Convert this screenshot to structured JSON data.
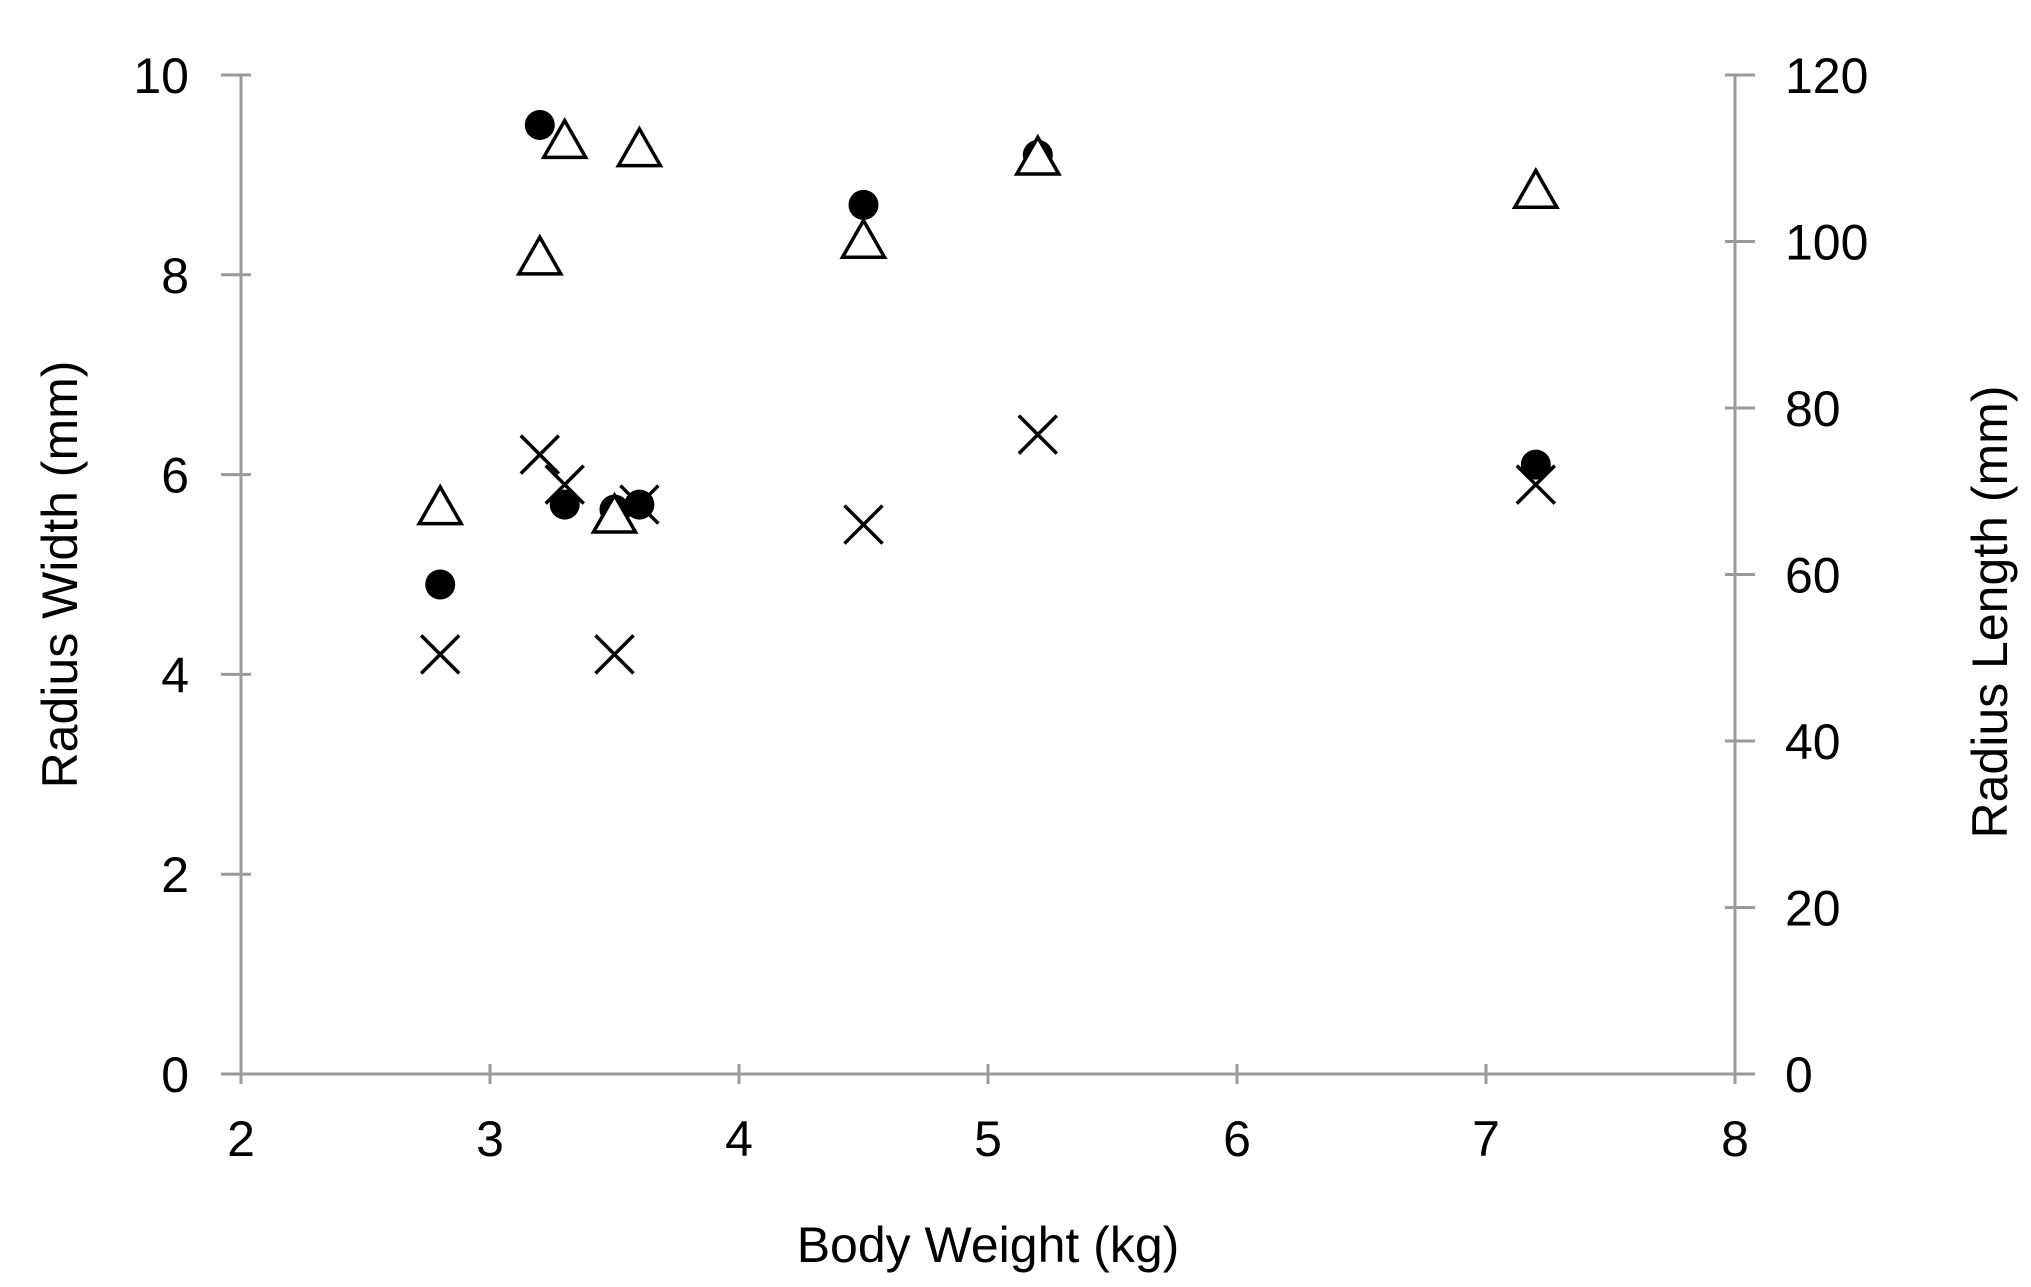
{
  "chart_data": {
    "type": "scatter",
    "title": "",
    "xlabel": "Body Weight (kg)",
    "ylabel": "Radius Width (mm)",
    "y2label": "Radius Length (mm)",
    "xlim": [
      2,
      8
    ],
    "ylim": [
      0,
      10
    ],
    "y2lim": [
      0,
      120
    ],
    "xticks": [
      "2",
      "3",
      "4",
      "5",
      "6",
      "7",
      "8"
    ],
    "yticks": [
      "0",
      "2",
      "4",
      "6",
      "8",
      "10"
    ],
    "y2ticks": [
      "0",
      "20",
      "40",
      "60",
      "80",
      "100",
      "120"
    ],
    "grid": false,
    "legend": "none",
    "series": [
      {
        "marker": "filled-circle",
        "axis": "left",
        "color": "#000000",
        "points": [
          {
            "x": 2.8,
            "y": 4.9
          },
          {
            "x": 3.2,
            "y": 9.5
          },
          {
            "x": 3.3,
            "y": 5.7
          },
          {
            "x": 3.5,
            "y": 5.65
          },
          {
            "x": 3.6,
            "y": 5.7
          },
          {
            "x": 4.5,
            "y": 8.7
          },
          {
            "x": 5.2,
            "y": 9.2
          },
          {
            "x": 7.2,
            "y": 6.1
          }
        ]
      },
      {
        "marker": "x",
        "axis": "left",
        "color": "#000000",
        "points": [
          {
            "x": 2.8,
            "y": 4.2
          },
          {
            "x": 3.2,
            "y": 6.2
          },
          {
            "x": 3.3,
            "y": 5.9
          },
          {
            "x": 3.5,
            "y": 4.2
          },
          {
            "x": 3.6,
            "y": 5.7
          },
          {
            "x": 4.5,
            "y": 5.5
          },
          {
            "x": 5.2,
            "y": 6.4
          },
          {
            "x": 7.2,
            "y": 5.9
          }
        ]
      },
      {
        "marker": "open-triangle",
        "axis": "right",
        "color": "#000000",
        "points": [
          {
            "x": 2.8,
            "y": 68
          },
          {
            "x": 3.2,
            "y": 98
          },
          {
            "x": 3.3,
            "y": 112
          },
          {
            "x": 3.5,
            "y": 67
          },
          {
            "x": 3.6,
            "y": 111
          },
          {
            "x": 4.5,
            "y": 100
          },
          {
            "x": 5.2,
            "y": 110
          },
          {
            "x": 7.2,
            "y": 106
          }
        ]
      }
    ]
  }
}
